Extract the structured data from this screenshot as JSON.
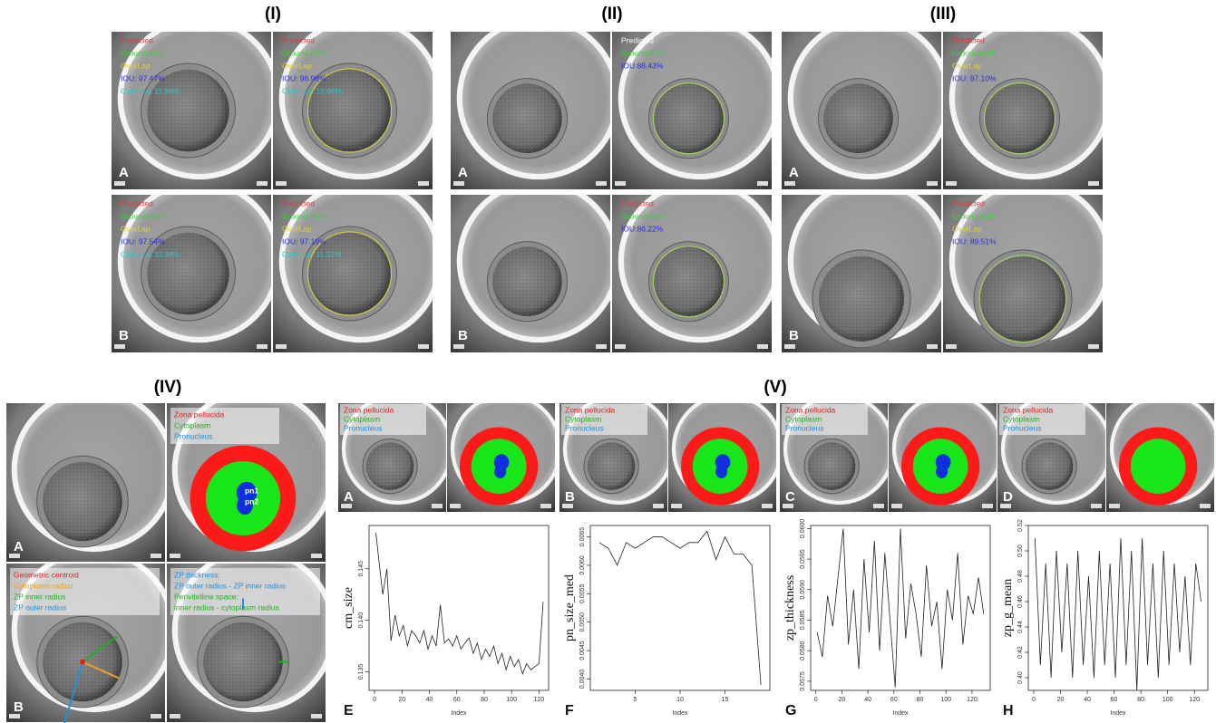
{
  "figure": {
    "groups": [
      {
        "label": "(I)",
        "rows": [
          {
            "letter": "A",
            "images": [
              {
                "overlay": [
                  {
                    "text": "Predicted",
                    "color": "#e23b3b"
                  },
                  {
                    "text": "Ground-truth",
                    "color": "#3ad13a"
                  },
                  {
                    "text": "OverLap",
                    "color": "#e0d23a"
                  },
                  {
                    "text": "IOU: 97.47%",
                    "color": "#2c2cd8"
                  },
                  {
                    "text": "Cytosize: 11.69%",
                    "color": "#27c7c7"
                  }
                ]
              },
              {
                "overlay": [
                  {
                    "text": "Predicted",
                    "color": "#e23b3b"
                  },
                  {
                    "text": "Ground-truth",
                    "color": "#3ad13a"
                  },
                  {
                    "text": "OverLap",
                    "color": "#e0d23a"
                  },
                  {
                    "text": "IOU: 96.98%",
                    "color": "#2c2cd8"
                  },
                  {
                    "text": "Cytosize: 12.60%",
                    "color": "#27c7c7"
                  }
                ]
              }
            ]
          },
          {
            "letter": "B",
            "images": [
              {
                "overlay": [
                  {
                    "text": "Predicted",
                    "color": "#e23b3b"
                  },
                  {
                    "text": "Ground-truth",
                    "color": "#3ad13a"
                  },
                  {
                    "text": "OverLap",
                    "color": "#e0d23a"
                  },
                  {
                    "text": "IOU: 97.54%",
                    "color": "#2c2cd8"
                  },
                  {
                    "text": "Cytosize: 11.34%",
                    "color": "#27c7c7"
                  }
                ]
              },
              {
                "overlay": [
                  {
                    "text": "Predicted",
                    "color": "#e23b3b"
                  },
                  {
                    "text": "Ground-truth",
                    "color": "#3ad13a"
                  },
                  {
                    "text": "OverLap",
                    "color": "#e0d23a"
                  },
                  {
                    "text": "IOU: 97.19%",
                    "color": "#2c2cd8"
                  },
                  {
                    "text": "Cytosize: 11.37%",
                    "color": "#27c7c7"
                  }
                ]
              }
            ]
          }
        ]
      },
      {
        "label": "(II)",
        "rows": [
          {
            "letter": "A",
            "images": [
              {
                "overlay": []
              },
              {
                "overlay": [
                  {
                    "text": "Predicted",
                    "color": "#ffffff"
                  },
                  {
                    "text": "Ground-truth",
                    "color": "#3ad13a"
                  },
                  {
                    "text": "IOU:88.43%",
                    "color": "#2c2cd8"
                  }
                ]
              }
            ]
          },
          {
            "letter": "B",
            "images": [
              {
                "overlay": []
              },
              {
                "overlay": [
                  {
                    "text": "Predicted",
                    "color": "#e23b3b"
                  },
                  {
                    "text": "Ground-truth",
                    "color": "#3ad13a"
                  },
                  {
                    "text": "IOU:86.22%",
                    "color": "#2c2cd8"
                  }
                ]
              }
            ]
          }
        ]
      },
      {
        "label": "(III)",
        "rows": [
          {
            "letter": "A",
            "images": [
              {
                "overlay": []
              },
              {
                "overlay": [
                  {
                    "text": "Predicted",
                    "color": "#e23b3b"
                  },
                  {
                    "text": "Ground-truth",
                    "color": "#3ad13a"
                  },
                  {
                    "text": "OverLap",
                    "color": "#e0d23a"
                  },
                  {
                    "text": "IOU: 87.10%",
                    "color": "#2c2cd8"
                  }
                ]
              }
            ]
          },
          {
            "letter": "B",
            "images": [
              {
                "overlay": []
              },
              {
                "overlay": [
                  {
                    "text": "Predicted",
                    "color": "#e23b3b"
                  },
                  {
                    "text": "Ground-truth",
                    "color": "#3ad13a"
                  },
                  {
                    "text": "OverLap",
                    "color": "#e0d23a"
                  },
                  {
                    "text": "IOU: 89.51%",
                    "color": "#2c2cd8"
                  }
                ]
              }
            ]
          }
        ]
      }
    ],
    "group4": {
      "label": "(IV)",
      "rows": [
        {
          "letter": "A",
          "images": [
            {
              "overlay": []
            },
            {
              "overlay": [
                {
                  "text": "Zona pellucida",
                  "color": "#e02020"
                },
                {
                  "text": "Cytoplasm",
                  "color": "#20b020"
                },
                {
                  "text": "Pronucleus",
                  "color": "#1e90e0"
                }
              ],
              "pn": [
                "pn1",
                "pn2"
              ]
            }
          ]
        },
        {
          "letter": "B",
          "images": [
            {
              "overlay": [
                {
                  "text": "Geometric centroid",
                  "color": "#e02020"
                },
                {
                  "text": "Cytoplasm radius",
                  "color": "#f0a020"
                },
                {
                  "text": "ZP inner radius",
                  "color": "#20b020"
                },
                {
                  "text": "ZP outer radius",
                  "color": "#1e90e0"
                }
              ]
            },
            {
              "overlay": [
                {
                  "text": "ZP thickness:",
                  "color": "#1e90e0"
                },
                {
                  "text": "ZP outer radius - ZP inner radius",
                  "color": "#1e90e0"
                },
                {
                  "text": "Perivitelline space:",
                  "color": "#20b020"
                },
                {
                  "text": "inner radius - cytoplasm radius",
                  "color": "#20b020"
                }
              ]
            }
          ]
        }
      ]
    },
    "group5": {
      "label": "(V)",
      "panels": [
        {
          "letter": "A",
          "overlay": [
            {
              "text": "Zona pellucida",
              "color": "#e02020"
            },
            {
              "text": "Cytoplasm",
              "color": "#20b020"
            },
            {
              "text": "Pronucleus",
              "color": "#1e90e0"
            }
          ]
        },
        {
          "letter": "B",
          "overlay": [
            {
              "text": "Zona pellucida",
              "color": "#e02020"
            },
            {
              "text": "Cytoplasm",
              "color": "#20b020"
            },
            {
              "text": "Pronucleus",
              "color": "#1e90e0"
            }
          ]
        },
        {
          "letter": "C",
          "overlay": [
            {
              "text": "Zona pellucida",
              "color": "#e02020"
            },
            {
              "text": "Cytoplasm",
              "color": "#20b020"
            },
            {
              "text": "Pronucleus",
              "color": "#1e90e0"
            }
          ]
        },
        {
          "letter": "D",
          "overlay": [
            {
              "text": "Zona pellucida",
              "color": "#e02020"
            },
            {
              "text": "Cytoplasm",
              "color": "#20b020"
            },
            {
              "text": "Pronucleus",
              "color": "#1e90e0"
            }
          ]
        }
      ]
    }
  },
  "chart_data": [
    {
      "type": "line",
      "panel_label": "E",
      "ylabel": "cm_size",
      "xlabel": "Index",
      "color": "#222222",
      "x": [
        1,
        3,
        6,
        9,
        12,
        15,
        18,
        21,
        24,
        27,
        30,
        33,
        36,
        39,
        42,
        45,
        48,
        51,
        54,
        57,
        60,
        63,
        66,
        69,
        72,
        75,
        78,
        81,
        84,
        87,
        90,
        93,
        96,
        99,
        102,
        105,
        108,
        111,
        114,
        117,
        120,
        123
      ],
      "values": [
        0.1485,
        0.146,
        0.1425,
        0.145,
        0.138,
        0.1405,
        0.1385,
        0.1395,
        0.1375,
        0.139,
        0.1385,
        0.1378,
        0.139,
        0.1372,
        0.1385,
        0.1375,
        0.1415,
        0.1378,
        0.1382,
        0.1375,
        0.1385,
        0.1372,
        0.1378,
        0.1383,
        0.1368,
        0.1378,
        0.1362,
        0.1372,
        0.1365,
        0.1375,
        0.1358,
        0.1368,
        0.1352,
        0.1365,
        0.1355,
        0.1362,
        0.1348,
        0.1358,
        0.1352,
        0.1355,
        0.1358,
        0.1418
      ],
      "xlim": [
        -4,
        127
      ],
      "ylim": [
        0.1332,
        0.1492
      ],
      "xticks": [
        0,
        20,
        40,
        60,
        80,
        100,
        120
      ],
      "yticks": [
        0.135,
        {
          "value": 0.14,
          "label": "0.140"
        },
        0.145
      ]
    },
    {
      "type": "line",
      "panel_label": "F",
      "ylabel": "pn_size_med",
      "xlabel": "Index",
      "color": "#222222",
      "x": [
        1,
        2,
        3,
        4,
        5,
        6,
        7,
        8,
        9,
        10,
        11,
        12,
        13,
        14,
        15,
        16,
        17,
        18,
        19
      ],
      "values": [
        0.0064,
        0.0063,
        0.006,
        0.0064,
        0.0063,
        0.0064,
        0.0065,
        0.0065,
        0.0064,
        0.0063,
        0.0064,
        0.0064,
        0.0066,
        0.0061,
        0.0065,
        0.0062,
        0.0062,
        0.006,
        0.0039
      ],
      "xlim": [
        0,
        20
      ],
      "ylim": [
        0.0038,
        0.0067
      ],
      "xticks": [
        5,
        10,
        15
      ],
      "yticks": [
        {
          "value": 0.004,
          "label": "0.0040"
        },
        0.0045,
        {
          "value": 0.005,
          "label": "0.0050"
        },
        0.0055,
        {
          "value": 0.006,
          "label": "0.0060"
        },
        0.0065
      ]
    },
    {
      "type": "line",
      "panel_label": "G",
      "ylabel": "zp_thickness",
      "xlabel": "Index",
      "color": "#222222",
      "x": [
        1,
        5,
        9,
        13,
        17,
        21,
        25,
        29,
        33,
        37,
        41,
        45,
        49,
        53,
        57,
        61,
        65,
        69,
        73,
        77,
        81,
        85,
        89,
        93,
        97,
        101,
        105,
        109,
        113,
        117,
        121,
        125,
        129
      ],
      "values": [
        0.0583,
        0.0579,
        0.0589,
        0.0584,
        0.0592,
        0.06,
        0.0581,
        0.059,
        0.0577,
        0.0595,
        0.0583,
        0.0598,
        0.058,
        0.0596,
        0.0585,
        0.0574,
        0.06,
        0.0582,
        0.0591,
        0.0586,
        0.0579,
        0.0594,
        0.0584,
        0.0588,
        0.0577,
        0.059,
        0.0585,
        0.0596,
        0.0581,
        0.0589,
        0.0586,
        0.0592,
        0.0586
      ],
      "xlim": [
        -4,
        134
      ],
      "ylim": [
        0.05735,
        0.06005
      ],
      "xticks": [
        0,
        20,
        40,
        60,
        80,
        100,
        120
      ],
      "yticks": [
        0.0575,
        {
          "value": 0.058,
          "label": "0.0580"
        },
        0.0585,
        {
          "value": 0.059,
          "label": "0.0590"
        },
        0.0595,
        {
          "value": 0.06,
          "label": "0.0600"
        }
      ]
    },
    {
      "type": "line",
      "panel_label": "H",
      "ylabel": "zp_g_mean",
      "xlabel": "Index",
      "color": "#222222",
      "x": [
        1,
        5,
        9,
        13,
        17,
        21,
        25,
        29,
        33,
        37,
        41,
        45,
        49,
        53,
        57,
        61,
        65,
        69,
        73,
        77,
        81,
        85,
        89,
        93,
        97,
        101,
        105,
        109,
        113,
        117,
        121,
        125
      ],
      "values": [
        0.51,
        0.41,
        0.49,
        0.4,
        0.5,
        0.42,
        0.49,
        0.4,
        0.5,
        0.41,
        0.48,
        0.4,
        0.5,
        0.41,
        0.49,
        0.4,
        0.51,
        0.41,
        0.5,
        0.39,
        0.51,
        0.41,
        0.49,
        0.4,
        0.5,
        0.41,
        0.49,
        0.42,
        0.48,
        0.41,
        0.49,
        0.46
      ],
      "xlim": [
        -4,
        130
      ],
      "ylim": [
        0.39,
        0.52
      ],
      "xticks": [
        0,
        20,
        40,
        60,
        80,
        100,
        120
      ],
      "yticks": [
        {
          "value": 0.4,
          "label": "0.40"
        },
        0.42,
        0.44,
        0.46,
        0.48,
        {
          "value": 0.5,
          "label": "0.50"
        },
        0.52
      ]
    }
  ]
}
